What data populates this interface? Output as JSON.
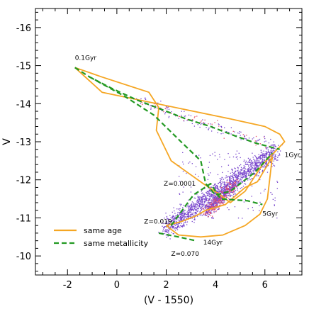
{
  "chart_data": {
    "type": "scatter",
    "xlabel": "(V - 1550)",
    "ylabel": "V",
    "xlim": [
      -3.3,
      7.5
    ],
    "ylim": [
      -9.5,
      -16.5
    ],
    "y_inverted": true,
    "x_ticks": [
      "-2",
      "0",
      "2",
      "4",
      "6"
    ],
    "y_ticks": [
      "-10",
      "-11",
      "-12",
      "-13",
      "-14",
      "-15",
      "-16"
    ],
    "grid": false,
    "legend_placement": "bottom-left",
    "colors": {
      "same_age": "#f5a623",
      "same_metallicity": "#229922",
      "points": "#7744cc",
      "points_dense": "#e8506a"
    },
    "series": [
      {
        "name": "same age",
        "style": "solid",
        "color": "#f5a623",
        "x": [
          -1.7,
          -0.6,
          1.3,
          1.7,
          1.6,
          2.2,
          3.5,
          4.2,
          4.6,
          5.2,
          5.9,
          6.5,
          6.8,
          6.6,
          6.0,
          4.6,
          -0.6,
          -1.7
        ],
        "y": [
          -14.95,
          -14.7,
          -14.3,
          -13.9,
          -13.3,
          -12.5,
          -11.9,
          -11.6,
          -11.4,
          -11.7,
          -12.4,
          -12.8,
          -13.0,
          -13.2,
          -13.4,
          -13.6,
          -14.3,
          -14.95
        ]
      },
      {
        "name": "same age (14Gyr)",
        "style": "solid",
        "color": "#f5a623",
        "x": [
          2.0,
          2.5,
          3.4,
          4.3,
          5.2,
          5.8,
          6.1,
          6.3,
          5.7,
          5.2,
          4.4,
          3.6,
          3.2,
          2.6,
          2.0
        ],
        "y": [
          -10.8,
          -10.55,
          -10.5,
          -10.55,
          -10.8,
          -11.1,
          -11.5,
          -12.6,
          -11.95,
          -11.8,
          -11.35,
          -11.2,
          -11.05,
          -10.9,
          -10.8
        ]
      },
      {
        "name": "same metallicity",
        "style": "dashed",
        "color": "#229922",
        "x": [
          -1.7,
          -1.1,
          -0.2,
          0.8,
          1.8,
          2.8,
          3.8,
          4.8,
          5.7,
          6.6
        ],
        "y": [
          -14.95,
          -14.7,
          -14.4,
          -14.1,
          -13.85,
          -13.6,
          -13.4,
          -13.15,
          -12.95,
          -12.8
        ]
      },
      {
        "name": "same metallicity (diagonal)",
        "style": "dashed",
        "color": "#229922",
        "x": [
          -1.1,
          0.3,
          1.5,
          2.6,
          3.4,
          3.6,
          4.0,
          4.6,
          5.6,
          6.3
        ],
        "y": [
          -14.7,
          -14.2,
          -13.7,
          -13.0,
          -12.5,
          -11.9,
          -11.6,
          -11.7,
          -12.2,
          -12.7
        ]
      },
      {
        "name": "same metallicity (Z=0.019)",
        "style": "dashed",
        "color": "#229922",
        "x": [
          2.2,
          3.1,
          3.8,
          4.2,
          5.3,
          5.9
        ],
        "y": [
          -10.8,
          -11.6,
          -11.9,
          -11.5,
          -11.45,
          -11.35
        ]
      },
      {
        "name": "same metallicity (Z=0.070)",
        "style": "dashed",
        "color": "#229922",
        "x": [
          1.7,
          2.5,
          3.2
        ],
        "y": [
          -10.6,
          -10.5,
          -10.4
        ]
      }
    ],
    "points_cloud": {
      "x_range": [
        1.8,
        6.5
      ],
      "y_range": [
        -10.6,
        -12.9
      ],
      "dense_core_x": [
        3.8,
        4.6
      ],
      "dense_core_y": [
        -11.2,
        -11.9
      ]
    },
    "annotations": [
      {
        "text": "0.1Gyr",
        "x": -1.7,
        "y": -15.15
      },
      {
        "text": "1Gyr",
        "x": 6.8,
        "y": -12.6
      },
      {
        "text": "Z=0.0001",
        "x": 1.9,
        "y": -11.85
      },
      {
        "text": "5Gyr",
        "x": 5.9,
        "y": -11.05
      },
      {
        "text": "Z=0.019",
        "x": 1.1,
        "y": -10.85
      },
      {
        "text": "Z=0.070",
        "x": 2.2,
        "y": -10.0
      },
      {
        "text": "14Gyr",
        "x": 3.5,
        "y": -10.3
      }
    ],
    "legend": [
      {
        "label": "same age",
        "style": "solid",
        "color": "#f5a623"
      },
      {
        "label": "same metallicity",
        "style": "dashed",
        "color": "#229922"
      }
    ]
  }
}
